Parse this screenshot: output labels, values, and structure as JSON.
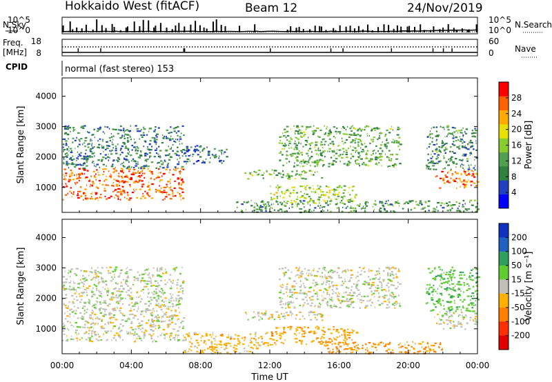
{
  "header": {
    "station": "Hokkaido West (fitACF)",
    "beam": "Beam 12",
    "date": "24/Nov/2019"
  },
  "top_panels": {
    "nsky_label": "N.Sky",
    "nsearch_label": "N.Search",
    "count_ticks": [
      "10^5",
      "10^0"
    ],
    "freq_label": "Freq.",
    "freq_unit": "[MHz]",
    "freq_ticks": [
      "18",
      "8"
    ],
    "nave_label": "Nave",
    "nave_ticks": [
      "60",
      "0"
    ],
    "cpid_label": "CPID",
    "cpid_value": "normal (fast stereo) 153"
  },
  "chart_data": [
    {
      "type": "heatmap",
      "name": "power",
      "ylabel": "Slant Range [km]",
      "xlabel": "",
      "xlim": [
        0,
        24
      ],
      "ylim": [
        180,
        4600
      ],
      "yticks": [
        1000,
        2000,
        3000,
        4000
      ],
      "colorbar": {
        "label": "Power [dB]",
        "ticks": [
          4,
          8,
          12,
          16,
          20,
          24,
          28
        ],
        "range": [
          0,
          32
        ],
        "colors": [
          "#0000ff",
          "#2040c0",
          "#308040",
          "#50a050",
          "#88cc30",
          "#e8e000",
          "#ffaa00",
          "#ff6000",
          "#ff0000"
        ]
      },
      "echo_regions": [
        {
          "t0": 0.0,
          "t1": 7.0,
          "r0": 600,
          "r1": 1650,
          "level": 27
        },
        {
          "t0": 0.0,
          "t1": 7.0,
          "r0": 1650,
          "r1": 3050,
          "level": 9
        },
        {
          "t0": 7.0,
          "t1": 9.5,
          "r0": 1800,
          "r1": 2400,
          "level": 8
        },
        {
          "t0": 10.5,
          "t1": 15.0,
          "r0": 1300,
          "r1": 1600,
          "level": 14
        },
        {
          "t0": 12.0,
          "t1": 17.0,
          "r0": 500,
          "r1": 1100,
          "level": 17
        },
        {
          "t0": 10.0,
          "t1": 24.0,
          "r0": 200,
          "r1": 600,
          "level": 11
        },
        {
          "t0": 12.5,
          "t1": 19.5,
          "r0": 1700,
          "r1": 3050,
          "level": 13
        },
        {
          "t0": 21.5,
          "t1": 24.0,
          "r0": 1000,
          "r1": 1600,
          "level": 26
        },
        {
          "t0": 21.0,
          "t1": 24.0,
          "r0": 1600,
          "r1": 3050,
          "level": 10
        }
      ]
    },
    {
      "type": "heatmap",
      "name": "velocity",
      "ylabel": "Slant Range [km]",
      "xlabel": "Time UT",
      "xlim": [
        0,
        24
      ],
      "ylim": [
        180,
        4600
      ],
      "yticks": [
        1000,
        2000,
        3000,
        4000
      ],
      "xticks": [
        "00:00",
        "04:00",
        "08:00",
        "12:00",
        "16:00",
        "20:00",
        "00:00"
      ],
      "colorbar": {
        "label": "Velocity [m s⁻¹]",
        "ticks": [
          "200",
          "100",
          "50",
          "15",
          "-15",
          "-50",
          "-100",
          "-200"
        ],
        "colors": [
          "#1030c0",
          "#2060c0",
          "#30a060",
          "#60cc30",
          "#c0c0b8",
          "#ffb000",
          "#ff8000",
          "#ff3000",
          "#e00000"
        ]
      },
      "echo_regions": [
        {
          "t0": 0.0,
          "t1": 7.0,
          "r0": 600,
          "r1": 1650,
          "level": 0
        },
        {
          "t0": 0.0,
          "t1": 7.0,
          "r0": 1650,
          "r1": 3050,
          "level": 5
        },
        {
          "t0": 7.0,
          "t1": 12.0,
          "r0": 200,
          "r1": 900,
          "level": -30
        },
        {
          "t0": 10.5,
          "t1": 15.0,
          "r0": 1300,
          "r1": 1600,
          "level": 0
        },
        {
          "t0": 12.0,
          "t1": 17.0,
          "r0": 500,
          "r1": 1100,
          "level": -40
        },
        {
          "t0": 15.0,
          "t1": 22.0,
          "r0": 200,
          "r1": 600,
          "level": -60
        },
        {
          "t0": 12.5,
          "t1": 19.5,
          "r0": 1700,
          "r1": 3050,
          "level": 0
        },
        {
          "t0": 21.5,
          "t1": 24.0,
          "r0": 1000,
          "r1": 1600,
          "level": 0
        },
        {
          "t0": 21.0,
          "t1": 24.0,
          "r0": 1600,
          "r1": 3050,
          "level": 40
        }
      ]
    }
  ]
}
